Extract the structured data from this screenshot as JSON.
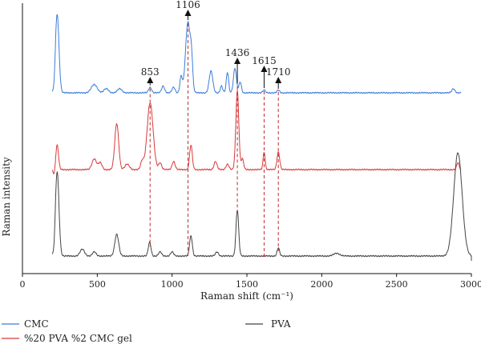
{
  "chart_data": {
    "type": "line",
    "title": "",
    "xlabel": "Raman shift (cm⁻¹)",
    "ylabel": "Raman intensity",
    "xlim": [
      0,
      3000
    ],
    "xticks": [
      0,
      500,
      1000,
      1500,
      2000,
      2500,
      3000
    ],
    "y_ticks_shown": false,
    "grid": false,
    "legend_placement": "bottom",
    "annotations": [
      {
        "label": "853",
        "x": 853
      },
      {
        "label": "1106",
        "x": 1106
      },
      {
        "label": "1436",
        "x": 1436
      },
      {
        "label": "1615",
        "x": 1615
      },
      {
        "label": "1710",
        "x": 1710
      }
    ],
    "series": [
      {
        "name": "CMC",
        "color": "#3b7dd8",
        "baseline": 0.32,
        "x_start": 200,
        "x_end": 2930,
        "noise": 0.006,
        "peaks": [
          [
            232,
            0.58,
            12
          ],
          [
            480,
            0.06,
            20
          ],
          [
            560,
            0.03,
            15
          ],
          [
            650,
            0.03,
            15
          ],
          [
            853,
            0.04,
            10
          ],
          [
            940,
            0.05,
            10
          ],
          [
            1010,
            0.04,
            10
          ],
          [
            1060,
            0.12,
            8
          ],
          [
            1106,
            0.52,
            16
          ],
          [
            1130,
            0.18,
            8
          ],
          [
            1260,
            0.16,
            12
          ],
          [
            1330,
            0.05,
            8
          ],
          [
            1370,
            0.15,
            8
          ],
          [
            1420,
            0.18,
            10
          ],
          [
            1455,
            0.08,
            8
          ],
          [
            1615,
            0.02,
            8
          ],
          [
            1710,
            0.02,
            8
          ],
          [
            2880,
            0.03,
            10
          ]
        ]
      },
      {
        "name": "%20 PVA %2 CMC gel",
        "color": "#d83b3b",
        "baseline": 0.18,
        "x_start": 200,
        "x_end": 2930,
        "noise": 0.006,
        "peaks": [
          [
            232,
            0.18,
            9
          ],
          [
            480,
            0.08,
            15
          ],
          [
            520,
            0.05,
            12
          ],
          [
            630,
            0.34,
            13
          ],
          [
            700,
            0.04,
            15
          ],
          [
            800,
            0.06,
            10
          ],
          [
            853,
            0.49,
            20
          ],
          [
            920,
            0.05,
            10
          ],
          [
            1010,
            0.06,
            10
          ],
          [
            1126,
            0.18,
            9
          ],
          [
            1290,
            0.06,
            10
          ],
          [
            1370,
            0.04,
            10
          ],
          [
            1436,
            0.58,
            10
          ],
          [
            1470,
            0.08,
            8
          ],
          [
            1615,
            0.13,
            7
          ],
          [
            1710,
            0.13,
            9
          ],
          [
            2910,
            0.05,
            8
          ]
        ]
      },
      {
        "name": "PVA",
        "color": "#444444",
        "baseline": 0.0,
        "x_start": 200,
        "x_end": 3000,
        "noise": 0.006,
        "peaks": [
          [
            232,
            0.62,
            12
          ],
          [
            400,
            0.05,
            15
          ],
          [
            480,
            0.03,
            12
          ],
          [
            630,
            0.16,
            13
          ],
          [
            850,
            0.1,
            9
          ],
          [
            920,
            0.03,
            10
          ],
          [
            1000,
            0.03,
            10
          ],
          [
            1126,
            0.15,
            9
          ],
          [
            1300,
            0.03,
            10
          ],
          [
            1436,
            0.34,
            9
          ],
          [
            1710,
            0.06,
            8
          ],
          [
            2100,
            0.02,
            20
          ],
          [
            2910,
            0.76,
            28
          ]
        ]
      }
    ]
  }
}
